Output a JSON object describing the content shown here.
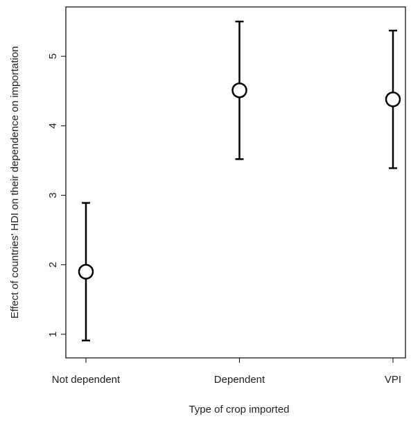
{
  "chart_data": {
    "type": "errorbar",
    "x_label": "Type of crop imported",
    "y_label": "Effect of countries' HDI on their dependence on importation",
    "categories": [
      "Not dependent",
      "Dependent",
      "VPI"
    ],
    "values": [
      1.9,
      4.51,
      4.38
    ],
    "errors": [
      0.99,
      0.99,
      0.99
    ],
    "color": "#000000",
    "ylim": [
      0.66,
      5.71
    ],
    "yticks": [
      1,
      2,
      3,
      4,
      5
    ]
  }
}
